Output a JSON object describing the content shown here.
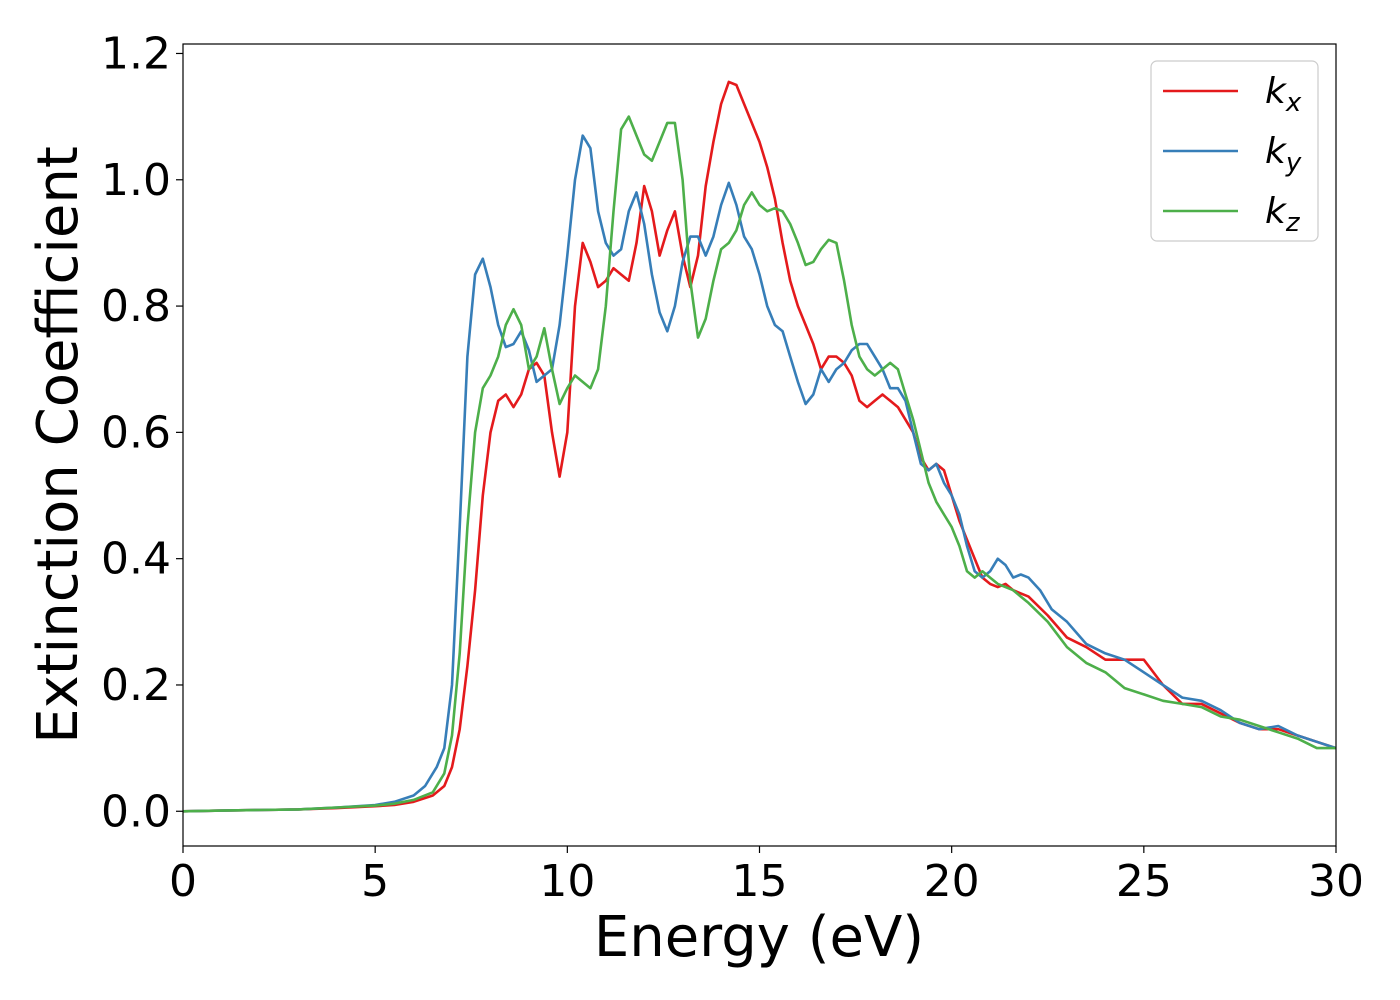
{
  "chart_data": {
    "type": "line",
    "xlabel": "Energy (eV)",
    "ylabel": "Extinction Coefficient",
    "xlim": [
      0,
      30
    ],
    "ylim": [
      -0.055,
      1.215
    ],
    "xticks": [
      0,
      5,
      10,
      15,
      20,
      25,
      30
    ],
    "yticks": [
      0.0,
      0.2,
      0.4,
      0.6,
      0.8,
      1.0,
      1.2
    ],
    "xtick_labels": [
      "0",
      "5",
      "10",
      "15",
      "20",
      "25",
      "30"
    ],
    "ytick_labels": [
      "0.0",
      "0.2",
      "0.4",
      "0.6",
      "0.8",
      "1.0",
      "1.2"
    ],
    "grid": false,
    "legend_position": "top-right",
    "series": [
      {
        "name": "k",
        "subscript": "x",
        "color": "#e41a1c",
        "x": [
          0,
          1,
          2,
          3,
          4,
          5,
          5.5,
          6,
          6.5,
          6.8,
          7.0,
          7.2,
          7.4,
          7.6,
          7.8,
          8.0,
          8.2,
          8.4,
          8.6,
          8.8,
          9.0,
          9.2,
          9.4,
          9.6,
          9.8,
          10.0,
          10.2,
          10.4,
          10.6,
          10.8,
          11.0,
          11.2,
          11.4,
          11.6,
          11.8,
          12.0,
          12.2,
          12.4,
          12.6,
          12.8,
          13.0,
          13.2,
          13.4,
          13.6,
          13.8,
          14.0,
          14.2,
          14.4,
          14.6,
          14.8,
          15.0,
          15.2,
          15.4,
          15.6,
          15.8,
          16.0,
          16.2,
          16.4,
          16.6,
          16.8,
          17.0,
          17.2,
          17.4,
          17.6,
          17.8,
          18.0,
          18.2,
          18.4,
          18.6,
          18.8,
          19.0,
          19.2,
          19.4,
          19.6,
          19.8,
          20.0,
          20.2,
          20.4,
          20.6,
          20.8,
          21.0,
          21.2,
          21.4,
          21.6,
          21.8,
          22.0,
          22.5,
          23.0,
          23.5,
          24.0,
          24.5,
          25.0,
          25.5,
          26.0,
          26.5,
          27.0,
          27.5,
          28.0,
          28.5,
          29.0,
          29.5,
          30.0
        ],
        "y": [
          0.0,
          0.001,
          0.002,
          0.003,
          0.005,
          0.008,
          0.01,
          0.015,
          0.025,
          0.04,
          0.07,
          0.13,
          0.23,
          0.35,
          0.5,
          0.6,
          0.65,
          0.66,
          0.64,
          0.66,
          0.7,
          0.71,
          0.69,
          0.6,
          0.53,
          0.6,
          0.8,
          0.9,
          0.87,
          0.83,
          0.84,
          0.86,
          0.85,
          0.84,
          0.9,
          0.99,
          0.95,
          0.88,
          0.92,
          0.95,
          0.88,
          0.83,
          0.88,
          0.99,
          1.06,
          1.12,
          1.155,
          1.15,
          1.12,
          1.09,
          1.06,
          1.02,
          0.97,
          0.9,
          0.84,
          0.8,
          0.77,
          0.74,
          0.7,
          0.72,
          0.72,
          0.71,
          0.69,
          0.65,
          0.64,
          0.65,
          0.66,
          0.65,
          0.64,
          0.62,
          0.6,
          0.56,
          0.54,
          0.55,
          0.54,
          0.5,
          0.46,
          0.43,
          0.4,
          0.37,
          0.36,
          0.355,
          0.36,
          0.35,
          0.345,
          0.34,
          0.31,
          0.275,
          0.26,
          0.24,
          0.24,
          0.24,
          0.2,
          0.17,
          0.17,
          0.155,
          0.14,
          0.13,
          0.13,
          0.12,
          0.11,
          0.1
        ]
      },
      {
        "name": "k",
        "subscript": "y",
        "color": "#377eb8",
        "x": [
          0,
          1,
          2,
          3,
          4,
          5,
          5.5,
          6,
          6.3,
          6.6,
          6.8,
          7.0,
          7.2,
          7.4,
          7.6,
          7.8,
          8.0,
          8.2,
          8.4,
          8.6,
          8.8,
          9.0,
          9.2,
          9.4,
          9.6,
          9.8,
          10.0,
          10.2,
          10.4,
          10.6,
          10.8,
          11.0,
          11.2,
          11.4,
          11.6,
          11.8,
          12.0,
          12.2,
          12.4,
          12.6,
          12.8,
          13.0,
          13.2,
          13.4,
          13.6,
          13.8,
          14.0,
          14.2,
          14.4,
          14.6,
          14.8,
          15.0,
          15.2,
          15.4,
          15.6,
          15.8,
          16.0,
          16.2,
          16.4,
          16.6,
          16.8,
          17.0,
          17.2,
          17.4,
          17.6,
          17.8,
          18.0,
          18.2,
          18.4,
          18.6,
          18.8,
          19.0,
          19.2,
          19.4,
          19.6,
          19.8,
          20.0,
          20.2,
          20.4,
          20.6,
          20.8,
          21.0,
          21.2,
          21.4,
          21.6,
          21.8,
          22.0,
          22.3,
          22.6,
          23.0,
          23.5,
          24.0,
          24.5,
          25.0,
          25.5,
          26.0,
          26.5,
          27.0,
          27.5,
          28.0,
          28.5,
          29.0,
          29.5,
          30.0
        ],
        "y": [
          0.0,
          0.001,
          0.002,
          0.003,
          0.006,
          0.01,
          0.015,
          0.025,
          0.04,
          0.07,
          0.1,
          0.2,
          0.45,
          0.72,
          0.85,
          0.875,
          0.83,
          0.77,
          0.735,
          0.74,
          0.76,
          0.73,
          0.68,
          0.69,
          0.7,
          0.77,
          0.88,
          1.0,
          1.07,
          1.05,
          0.95,
          0.9,
          0.88,
          0.89,
          0.95,
          0.98,
          0.93,
          0.85,
          0.79,
          0.76,
          0.8,
          0.87,
          0.91,
          0.91,
          0.88,
          0.91,
          0.96,
          0.995,
          0.96,
          0.91,
          0.89,
          0.85,
          0.8,
          0.77,
          0.76,
          0.72,
          0.68,
          0.645,
          0.66,
          0.7,
          0.68,
          0.7,
          0.71,
          0.73,
          0.74,
          0.74,
          0.72,
          0.7,
          0.67,
          0.67,
          0.65,
          0.6,
          0.55,
          0.54,
          0.55,
          0.52,
          0.5,
          0.47,
          0.42,
          0.38,
          0.37,
          0.38,
          0.4,
          0.39,
          0.37,
          0.375,
          0.37,
          0.35,
          0.32,
          0.3,
          0.265,
          0.25,
          0.24,
          0.22,
          0.2,
          0.18,
          0.175,
          0.16,
          0.14,
          0.13,
          0.135,
          0.12,
          0.11,
          0.1
        ]
      },
      {
        "name": "k",
        "subscript": "z",
        "color": "#4daf4a",
        "x": [
          0,
          1,
          2,
          3,
          4,
          5,
          5.5,
          6,
          6.5,
          6.8,
          7.0,
          7.2,
          7.4,
          7.6,
          7.8,
          8.0,
          8.2,
          8.4,
          8.6,
          8.8,
          9.0,
          9.2,
          9.4,
          9.6,
          9.8,
          10.0,
          10.2,
          10.4,
          10.6,
          10.8,
          11.0,
          11.2,
          11.4,
          11.6,
          11.8,
          12.0,
          12.2,
          12.4,
          12.6,
          12.8,
          13.0,
          13.2,
          13.4,
          13.6,
          13.8,
          14.0,
          14.2,
          14.4,
          14.6,
          14.8,
          15.0,
          15.2,
          15.4,
          15.6,
          15.8,
          16.0,
          16.2,
          16.4,
          16.6,
          16.8,
          17.0,
          17.2,
          17.4,
          17.6,
          17.8,
          18.0,
          18.2,
          18.4,
          18.6,
          18.8,
          19.0,
          19.2,
          19.4,
          19.6,
          19.8,
          20.0,
          20.2,
          20.4,
          20.6,
          20.8,
          21.0,
          21.2,
          21.4,
          21.6,
          21.8,
          22.0,
          22.5,
          23.0,
          23.5,
          24.0,
          24.5,
          25.0,
          25.5,
          26.0,
          26.5,
          27.0,
          27.5,
          28.0,
          28.5,
          29.0,
          29.5,
          30.0
        ],
        "y": [
          0.0,
          0.001,
          0.002,
          0.003,
          0.006,
          0.009,
          0.012,
          0.018,
          0.03,
          0.06,
          0.12,
          0.25,
          0.45,
          0.6,
          0.67,
          0.69,
          0.72,
          0.77,
          0.795,
          0.77,
          0.7,
          0.72,
          0.765,
          0.7,
          0.645,
          0.67,
          0.69,
          0.68,
          0.67,
          0.7,
          0.8,
          0.95,
          1.08,
          1.1,
          1.07,
          1.04,
          1.03,
          1.06,
          1.09,
          1.09,
          1.0,
          0.84,
          0.75,
          0.78,
          0.84,
          0.89,
          0.9,
          0.92,
          0.96,
          0.98,
          0.96,
          0.95,
          0.955,
          0.95,
          0.93,
          0.9,
          0.865,
          0.87,
          0.89,
          0.905,
          0.9,
          0.84,
          0.77,
          0.72,
          0.7,
          0.69,
          0.7,
          0.71,
          0.7,
          0.66,
          0.62,
          0.57,
          0.52,
          0.49,
          0.47,
          0.45,
          0.42,
          0.38,
          0.37,
          0.38,
          0.37,
          0.36,
          0.355,
          0.35,
          0.34,
          0.33,
          0.3,
          0.26,
          0.235,
          0.22,
          0.195,
          0.185,
          0.175,
          0.17,
          0.165,
          0.15,
          0.145,
          0.135,
          0.125,
          0.115,
          0.1,
          0.1
        ]
      }
    ]
  }
}
